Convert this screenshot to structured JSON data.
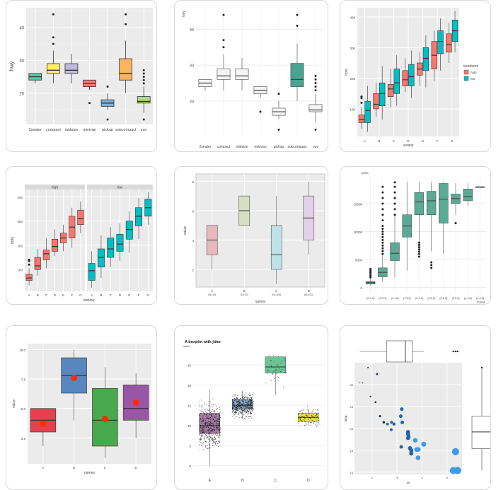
{
  "chart_data": [
    {
      "type": "boxplot",
      "ylabel": "hwy",
      "theme": "grey panel, white grid",
      "categories": [
        "2seater",
        "compact",
        "midsize",
        "minivan",
        "pickup",
        "subcompact",
        "suv"
      ],
      "yticks": [
        20,
        30,
        40
      ],
      "ylim": [
        10.5,
        46
      ],
      "colors": [
        "#66c2a5",
        "#ffed6f",
        "#bebada",
        "#fb8072",
        "#80b1d3",
        "#fdb462",
        "#b3de69"
      ],
      "boxes": [
        {
          "q1": 24,
          "median": 25,
          "q3": 26,
          "lo": 23,
          "hi": 26,
          "out": []
        },
        {
          "q1": 26,
          "median": 27,
          "q3": 29,
          "lo": 23,
          "hi": 33,
          "out": [
            35,
            37,
            44
          ]
        },
        {
          "q1": 26,
          "median": 27,
          "q3": 29,
          "lo": 23,
          "hi": 32,
          "out": []
        },
        {
          "q1": 22,
          "median": 23,
          "q3": 24,
          "lo": 21,
          "hi": 24,
          "out": [
            17
          ]
        },
        {
          "q1": 16,
          "median": 17,
          "q3": 18,
          "lo": 15,
          "hi": 20,
          "out": [
            12,
            22
          ]
        },
        {
          "q1": 24,
          "median": 26,
          "q3": 30.5,
          "lo": 20,
          "hi": 36,
          "out": [
            41,
            44
          ]
        },
        {
          "q1": 17,
          "median": 17.5,
          "q3": 19,
          "lo": 14,
          "hi": 22,
          "out": [
            12,
            23,
            24,
            25,
            26,
            27
          ]
        }
      ]
    },
    {
      "type": "boxplot",
      "ylabel": "hwy",
      "theme": "minimal, white",
      "categories": [
        "2seater",
        "compact",
        "midsize",
        "minivan",
        "pickup",
        "subcompact",
        "suv"
      ],
      "yticks": [
        20,
        30,
        40
      ],
      "ylim": [
        10.5,
        46
      ],
      "highlight": "subcompact",
      "highlight_color": "#49a38f",
      "boxes": [
        {
          "q1": 24,
          "median": 25,
          "q3": 26,
          "lo": 23,
          "hi": 26,
          "out": []
        },
        {
          "q1": 26,
          "median": 27,
          "q3": 29,
          "lo": 23,
          "hi": 33,
          "out": [
            35,
            37,
            44
          ]
        },
        {
          "q1": 26,
          "median": 27,
          "q3": 29,
          "lo": 23,
          "hi": 32,
          "out": []
        },
        {
          "q1": 22,
          "median": 23,
          "q3": 24,
          "lo": 21,
          "hi": 24,
          "out": [
            17
          ]
        },
        {
          "q1": 16,
          "median": 17,
          "q3": 18,
          "lo": 15,
          "hi": 20,
          "out": [
            12,
            22
          ]
        },
        {
          "q1": 24,
          "median": 26,
          "q3": 30.5,
          "lo": 20,
          "hi": 36,
          "out": [
            41,
            44
          ]
        },
        {
          "q1": 17,
          "median": 17.5,
          "q3": 19,
          "lo": 14,
          "hi": 22,
          "out": [
            12,
            23,
            24,
            25,
            26,
            27
          ]
        }
      ]
    },
    {
      "type": "boxplot",
      "xlabel": "variety",
      "ylabel": "note",
      "legend_title": "treatment",
      "legend_position": "right",
      "series": [
        {
          "name": "high",
          "color": "#f8766d"
        },
        {
          "name": "low",
          "color": "#00bfc4"
        }
      ],
      "categories": [
        "A",
        "B",
        "C",
        "D",
        "E",
        "F",
        "G"
      ],
      "yticks": [
        100,
        200,
        300,
        400
      ],
      "ylim": [
        10,
        430
      ],
      "boxes_high": [
        {
          "q1": 55,
          "median": 65,
          "q3": 80,
          "lo": 35,
          "hi": 105,
          "out": [
            120,
            135,
            140
          ]
        },
        {
          "q1": 100,
          "median": 115,
          "q3": 150,
          "lo": 75,
          "hi": 185,
          "out": []
        },
        {
          "q1": 140,
          "median": 165,
          "q3": 180,
          "lo": 105,
          "hi": 230,
          "out": []
        },
        {
          "q1": 175,
          "median": 195,
          "q3": 225,
          "lo": 155,
          "hi": 265,
          "out": []
        },
        {
          "q1": 210,
          "median": 230,
          "q3": 250,
          "lo": 175,
          "hi": 285,
          "out": []
        },
        {
          "q1": 230,
          "median": 275,
          "q3": 320,
          "lo": 190,
          "hi": 355,
          "out": []
        },
        {
          "q1": 285,
          "median": 310,
          "q3": 345,
          "lo": 250,
          "hi": 380,
          "out": []
        }
      ],
      "boxes_low": [
        {
          "q1": 55,
          "median": 95,
          "q3": 125,
          "lo": 25,
          "hi": 175,
          "out": []
        },
        {
          "q1": 110,
          "median": 150,
          "q3": 185,
          "lo": 65,
          "hi": 240,
          "out": []
        },
        {
          "q1": 150,
          "median": 185,
          "q3": 230,
          "lo": 110,
          "hi": 275,
          "out": []
        },
        {
          "q1": 175,
          "median": 205,
          "q3": 245,
          "lo": 135,
          "hi": 290,
          "out": []
        },
        {
          "q1": 225,
          "median": 265,
          "q3": 300,
          "lo": 170,
          "hi": 340,
          "out": []
        },
        {
          "q1": 280,
          "median": 320,
          "q3": 355,
          "lo": 225,
          "hi": 395,
          "out": []
        },
        {
          "q1": 320,
          "median": 355,
          "q3": 390,
          "lo": 285,
          "hi": 420,
          "out": []
        }
      ]
    },
    {
      "type": "boxplot",
      "facets": [
        "high",
        "low"
      ],
      "xlabel": "variety",
      "ylabel": "note",
      "categories": [
        "A",
        "B",
        "C",
        "D",
        "E",
        "F",
        "G"
      ],
      "yticks": [
        100,
        200,
        300,
        400
      ],
      "ylim": [
        10,
        430
      ],
      "facet_colors": [
        "#f8766d",
        "#00bfc4"
      ]
    },
    {
      "type": "boxplot",
      "xlabel": "names",
      "ylabel": "value",
      "categories": [
        "A",
        "B",
        "C",
        "D"
      ],
      "sublabels": [
        "(N=10)",
        "(N=10)",
        "(N=100)",
        "(N=100)"
      ],
      "yticks": [
        2,
        4,
        6,
        8
      ],
      "ylim": [
        0.8,
        8.5
      ],
      "colors": [
        "#e7b9bc",
        "#d6e0c0",
        "#bfe1e8",
        "#e3cfe9"
      ],
      "boxes": [
        {
          "q1": 3,
          "median": 4,
          "q3": 5,
          "lo": 2,
          "hi": 5,
          "out": []
        },
        {
          "q1": 5,
          "median": 6,
          "q3": 7,
          "lo": 5,
          "hi": 7,
          "out": []
        },
        {
          "q1": 2,
          "median": 3,
          "q3": 5,
          "lo": 1,
          "hi": 7,
          "out": []
        },
        {
          "q1": 4,
          "median": 5.5,
          "q3": 7,
          "lo": 3,
          "hi": 8,
          "out": []
        }
      ]
    },
    {
      "type": "boxplot",
      "ylabel": "price",
      "xlabel": "Carat",
      "categories": [
        "[0,0.5]",
        "(0.5,1]",
        "(1,1.5]",
        "(1.5,2]",
        "(2,2.5]",
        "(2.5,3]",
        "(3,3.5]",
        "(3.5,4]",
        "(4,4.5]",
        "(4.5,5]"
      ],
      "yticks": [
        0,
        5000,
        10000,
        15000
      ],
      "ylim": [
        -1200,
        19800
      ],
      "color": "#5aaa95",
      "boxes": [
        {
          "q1": 600,
          "median": 850,
          "q3": 1050,
          "lo": 330,
          "hi": 1600,
          "out": [
            1800,
            2100,
            2400,
            2700,
            3000,
            3300
          ]
        },
        {
          "q1": 1900,
          "median": 2700,
          "q3": 3500,
          "lo": 1000,
          "hi": 5800,
          "out": [
            6000,
            6500,
            7000,
            7500,
            8000,
            8500,
            9000,
            9500,
            10000,
            10500,
            11000,
            12000,
            13000,
            14000,
            15000,
            16000,
            17000,
            18000
          ]
        },
        {
          "q1": 4800,
          "median": 6100,
          "q3": 8000,
          "lo": 1800,
          "hi": 12800,
          "out": [
            13000,
            14000,
            15000,
            16000,
            17000,
            18000,
            18800
          ]
        },
        {
          "q1": 9000,
          "median": 11000,
          "q3": 13000,
          "lo": 3000,
          "hi": 18800,
          "out": []
        },
        {
          "q1": 13000,
          "median": 15300,
          "q3": 17000,
          "lo": 6800,
          "hi": 18800,
          "out": [
            5500,
            6000,
            6400,
            6800,
            7200,
            7600,
            8000
          ]
        },
        {
          "q1": 13000,
          "median": 15500,
          "q3": 17200,
          "lo": 6500,
          "hi": 18800,
          "out": [
            3500,
            4000,
            4500
          ]
        },
        {
          "q1": 11500,
          "median": 15800,
          "q3": 18600,
          "lo": 6000,
          "hi": 18800,
          "out": []
        },
        {
          "q1": 15000,
          "median": 15900,
          "q3": 16700,
          "lo": 13000,
          "hi": 18700,
          "out": [
            11500
          ]
        },
        {
          "q1": 15500,
          "median": 16300,
          "q3": 17600,
          "lo": 14500,
          "hi": 18600,
          "out": []
        },
        {
          "q1": 18000,
          "median": 18000,
          "q3": 18000,
          "lo": 18000,
          "hi": 18000,
          "out": []
        }
      ]
    },
    {
      "type": "boxplot",
      "xlabel": "names",
      "ylabel": "value",
      "categories": [
        "A",
        "B",
        "C",
        "D"
      ],
      "yticks": [
        2.5,
        5.0,
        7.5,
        10.0
      ],
      "ylim": [
        0.3,
        10.5
      ],
      "colors": [
        "#e4414e",
        "#5987bd",
        "#4aa84c",
        "#9a56a6"
      ],
      "mean_color": "#ff2a00",
      "boxes": [
        {
          "q1": 3,
          "median": 4,
          "q3": 5,
          "lo": 1.8,
          "hi": 5,
          "out": [],
          "mean": 3.7
        },
        {
          "q1": 6.3,
          "median": 7.8,
          "q3": 9.3,
          "lo": 4,
          "hi": 10,
          "out": [],
          "mean": 7.6
        },
        {
          "q1": 1.8,
          "median": 4,
          "q3": 6.7,
          "lo": 0.8,
          "hi": 8.5,
          "out": [],
          "mean": 4.1
        },
        {
          "q1": 4,
          "median": 5,
          "q3": 7,
          "lo": 2.5,
          "hi": 8,
          "out": [],
          "mean": 5.5
        }
      ]
    },
    {
      "type": "boxplot",
      "title": "A boxplot with jitter",
      "ylabel": "value",
      "categories": [
        "A",
        "B",
        "C",
        "D"
      ],
      "yticks": [
        0,
        5,
        10,
        15,
        20,
        25
      ],
      "ylim": [
        -2.5,
        28
      ],
      "colors": [
        "#a57aa4",
        "#93b0cf",
        "#6dc394",
        "#f1e05a"
      ],
      "boxes": [
        {
          "q1": 8,
          "median": 10,
          "q3": 13,
          "lo": 0,
          "hi": 19,
          "out": []
        },
        {
          "q1": 14,
          "median": 15,
          "q3": 16.5,
          "lo": 11.5,
          "hi": 18.5,
          "out": []
        },
        {
          "q1": 23,
          "median": 24.5,
          "q3": 27,
          "lo": 17.5,
          "hi": 27,
          "out": []
        },
        {
          "q1": 11,
          "median": 12,
          "q3": 13,
          "lo": 10,
          "hi": 14,
          "out": []
        }
      ]
    },
    {
      "type": "scatter",
      "xlabel": "wt",
      "ylabel": "mpg",
      "xticks": [
        2,
        3,
        4,
        5
      ],
      "yticks": [
        10,
        15,
        20,
        25,
        30
      ],
      "xlim": [
        1.3,
        5.6
      ],
      "ylim": [
        9.5,
        35
      ],
      "points": [
        [
          1.51,
          30.4
        ],
        [
          1.62,
          30.4
        ],
        [
          1.84,
          33.9
        ],
        [
          1.94,
          27.3
        ],
        [
          2.14,
          26
        ],
        [
          2.2,
          32.4
        ],
        [
          2.32,
          22.8
        ],
        [
          2.47,
          21.4
        ],
        [
          2.62,
          21
        ],
        [
          2.77,
          19.7
        ],
        [
          2.78,
          21.4
        ],
        [
          2.88,
          21
        ],
        [
          3.15,
          22.8
        ],
        [
          3.17,
          15.8
        ],
        [
          3.19,
          24.4
        ],
        [
          3.21,
          21.4
        ],
        [
          3.44,
          18.7
        ],
        [
          3.44,
          19.2
        ],
        [
          3.44,
          17.8
        ],
        [
          3.46,
          18.1
        ],
        [
          3.52,
          15.5
        ],
        [
          3.57,
          14.3
        ],
        [
          3.57,
          15
        ],
        [
          3.73,
          17.3
        ],
        [
          3.78,
          15.2
        ],
        [
          3.84,
          13.3
        ],
        [
          3.85,
          15.2
        ],
        [
          4.07,
          16.4
        ],
        [
          5.25,
          10.4
        ],
        [
          5.34,
          14.7
        ],
        [
          5.42,
          10.4
        ]
      ],
      "marginal_x": {
        "q1": 2.58,
        "median": 3.33,
        "q3": 3.61,
        "lo": 1.51,
        "hi": 4.07,
        "out": [
          5.25,
          5.34,
          5.42
        ]
      },
      "marginal_y": {
        "q1": 15.4,
        "median": 19.2,
        "q3": 22.8,
        "lo": 10.4,
        "hi": 33.9,
        "out": []
      }
    }
  ]
}
